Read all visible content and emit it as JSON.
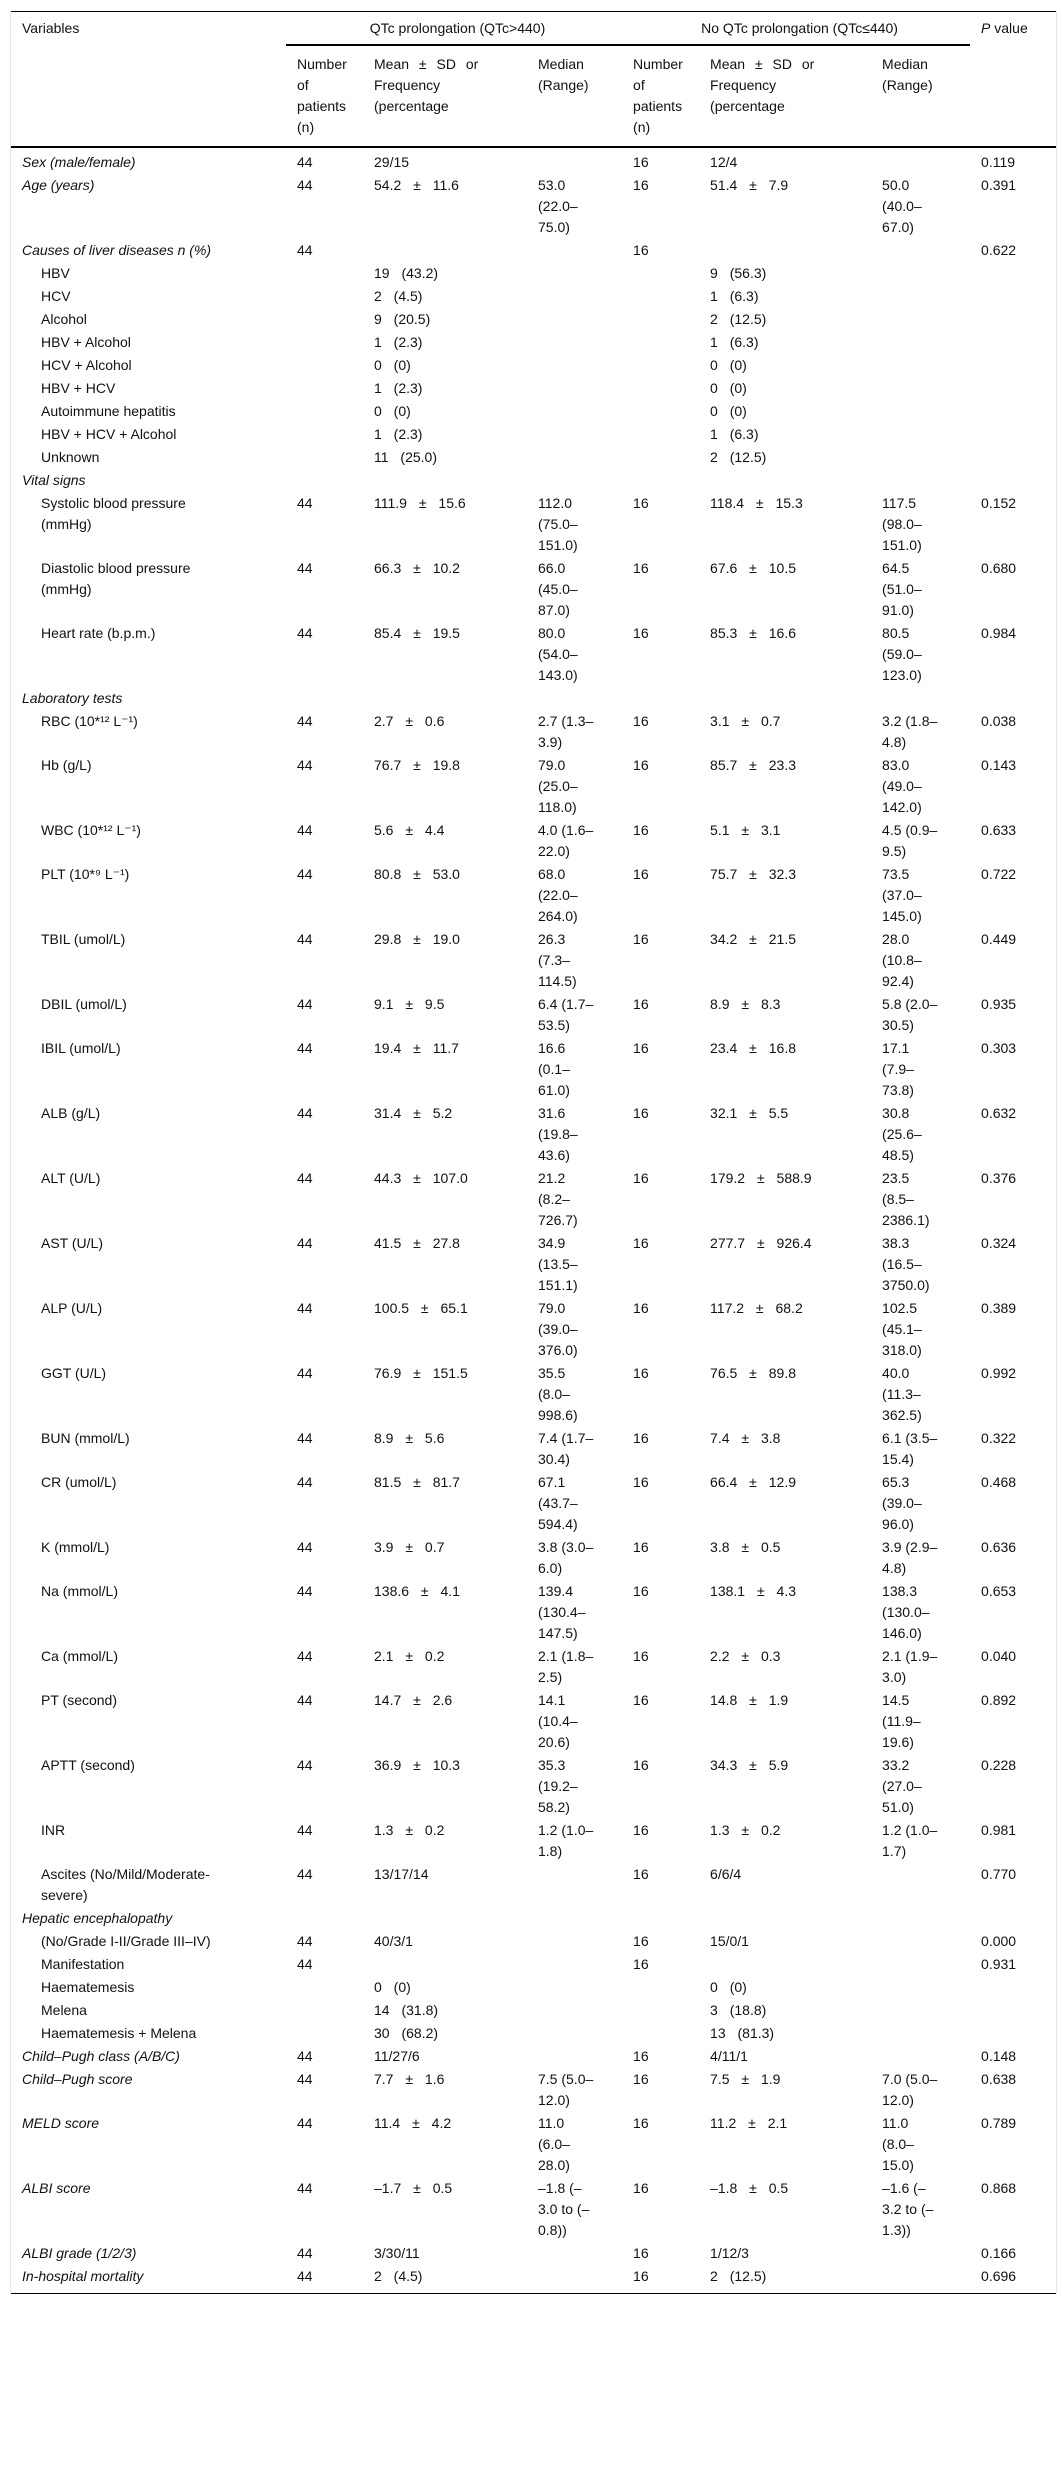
{
  "header": {
    "variables": "Variables",
    "group1": "QTc prolongation (QTc>440)",
    "group2": "No QTc prolongation (QTc≤440)",
    "p_italic": "P",
    "p_rest": " value",
    "col_n": "Number of patients (n)",
    "col_mean": "Mean ± SD or Frequency (percentage",
    "col_median": "Median (Range)"
  },
  "rows": [
    {
      "s": "it",
      "v": "Sex (male/female)",
      "c": [
        "44",
        "29/15",
        "",
        "16",
        "12/4",
        "",
        "0.119"
      ]
    },
    {
      "s": "it",
      "v": "Age (years)",
      "c": [
        "44",
        "54.2 ± 11.6",
        "53.0 (22.0–75.0)",
        "16",
        "51.4 ± 7.9",
        "50.0 (40.0–67.0)",
        "0.391"
      ]
    },
    {
      "s": "it",
      "v": "Causes of liver diseases n (%)",
      "c": [
        "44",
        "",
        "",
        "16",
        "",
        "",
        "0.622"
      ]
    },
    {
      "s": "ind",
      "v": "HBV",
      "c": [
        "",
        "19 (43.2)",
        "",
        "",
        "9 (56.3)",
        "",
        ""
      ]
    },
    {
      "s": "ind",
      "v": "HCV",
      "c": [
        "",
        "2 (4.5)",
        "",
        "",
        "1 (6.3)",
        "",
        ""
      ]
    },
    {
      "s": "ind",
      "v": "Alcohol",
      "c": [
        "",
        "9 (20.5)",
        "",
        "",
        "2 (12.5)",
        "",
        ""
      ]
    },
    {
      "s": "ind",
      "v": "HBV + Alcohol",
      "c": [
        "",
        "1 (2.3)",
        "",
        "",
        "1 (6.3)",
        "",
        ""
      ]
    },
    {
      "s": "ind",
      "v": "HCV + Alcohol",
      "c": [
        "",
        "0 (0)",
        "",
        "",
        "0 (0)",
        "",
        ""
      ]
    },
    {
      "s": "ind",
      "v": "HBV + HCV",
      "c": [
        "",
        "1 (2.3)",
        "",
        "",
        "0 (0)",
        "",
        ""
      ]
    },
    {
      "s": "ind",
      "v": "Autoimmune hepatitis",
      "c": [
        "",
        "0 (0)",
        "",
        "",
        "0 (0)",
        "",
        ""
      ]
    },
    {
      "s": "ind",
      "v": "HBV + HCV + Alcohol",
      "c": [
        "",
        "1 (2.3)",
        "",
        "",
        "1 (6.3)",
        "",
        ""
      ]
    },
    {
      "s": "ind",
      "v": "Unknown",
      "c": [
        "",
        "11 (25.0)",
        "",
        "",
        "2 (12.5)",
        "",
        ""
      ]
    },
    {
      "s": "it",
      "v": "Vital signs",
      "c": [
        "",
        "",
        "",
        "",
        "",
        "",
        ""
      ]
    },
    {
      "s": "ind",
      "v": "Systolic blood pressure (mmHg)",
      "c": [
        "44",
        "111.9 ± 15.6",
        "112.0 (75.0–151.0)",
        "16",
        "118.4 ± 15.3",
        "117.5 (98.0–151.0)",
        "0.152"
      ]
    },
    {
      "s": "ind",
      "v": "Diastolic blood pressure (mmHg)",
      "c": [
        "44",
        "66.3 ± 10.2",
        "66.0 (45.0–87.0)",
        "16",
        "67.6 ± 10.5",
        "64.5 (51.0–91.0)",
        "0.680"
      ]
    },
    {
      "s": "ind",
      "v": "Heart rate (b.p.m.)",
      "c": [
        "44",
        "85.4 ± 19.5",
        "80.0 (54.0–143.0)",
        "16",
        "85.3 ± 16.6",
        "80.5 (59.0–123.0)",
        "0.984"
      ]
    },
    {
      "s": "it",
      "v": "Laboratory tests",
      "c": [
        "",
        "",
        "",
        "",
        "",
        "",
        ""
      ]
    },
    {
      "s": "ind",
      "v": "RBC (10*¹²  L⁻¹)",
      "c": [
        "44",
        "2.7 ± 0.6",
        "2.7 (1.3–3.9)",
        "16",
        "3.1 ± 0.7",
        "3.2 (1.8–4.8)",
        "0.038"
      ]
    },
    {
      "s": "ind",
      "v": "Hb (g/L)",
      "c": [
        "44",
        "76.7 ± 19.8",
        "79.0 (25.0–118.0)",
        "16",
        "85.7 ± 23.3",
        "83.0 (49.0–142.0)",
        "0.143"
      ]
    },
    {
      "s": "ind",
      "v": "WBC (10*¹²  L⁻¹)",
      "c": [
        "44",
        "5.6 ± 4.4",
        "4.0 (1.6–22.0)",
        "16",
        "5.1 ± 3.1",
        "4.5 (0.9–9.5)",
        "0.633"
      ]
    },
    {
      "s": "ind",
      "v": "PLT (10*⁹  L⁻¹)",
      "c": [
        "44",
        "80.8 ± 53.0",
        "68.0 (22.0–264.0)",
        "16",
        "75.7 ± 32.3",
        "73.5 (37.0–145.0)",
        "0.722"
      ]
    },
    {
      "s": "ind",
      "v": "TBIL (umol/L)",
      "c": [
        "44",
        "29.8 ± 19.0",
        "26.3 (7.3–114.5)",
        "16",
        "34.2 ± 21.5",
        "28.0 (10.8–92.4)",
        "0.449"
      ]
    },
    {
      "s": "ind",
      "v": "DBIL (umol/L)",
      "c": [
        "44",
        "9.1 ± 9.5",
        "6.4 (1.7–53.5)",
        "16",
        "8.9 ± 8.3",
        "5.8 (2.0–30.5)",
        "0.935"
      ]
    },
    {
      "s": "ind",
      "v": "IBIL (umol/L)",
      "c": [
        "44",
        "19.4 ± 11.7",
        "16.6 (0.1–61.0)",
        "16",
        "23.4 ± 16.8",
        "17.1 (7.9–73.8)",
        "0.303"
      ]
    },
    {
      "s": "ind",
      "v": "ALB (g/L)",
      "c": [
        "44",
        "31.4 ± 5.2",
        "31.6 (19.8–43.6)",
        "16",
        "32.1 ± 5.5",
        "30.8 (25.6–48.5)",
        "0.632"
      ]
    },
    {
      "s": "ind",
      "v": "ALT (U/L)",
      "c": [
        "44",
        "44.3 ± 107.0",
        "21.2 (8.2–726.7)",
        "16",
        "179.2 ± 588.9",
        "23.5 (8.5–2386.1)",
        "0.376"
      ]
    },
    {
      "s": "ind",
      "v": "AST (U/L)",
      "c": [
        "44",
        "41.5 ± 27.8",
        "34.9 (13.5–151.1)",
        "16",
        "277.7 ± 926.4",
        "38.3 (16.5–3750.0)",
        "0.324"
      ]
    },
    {
      "s": "ind",
      "v": "ALP (U/L)",
      "c": [
        "44",
        "100.5 ± 65.1",
        "79.0 (39.0–376.0)",
        "16",
        "117.2 ± 68.2",
        "102.5 (45.1–318.0)",
        "0.389"
      ]
    },
    {
      "s": "ind",
      "v": "GGT (U/L)",
      "c": [
        "44",
        "76.9 ± 151.5",
        "35.5 (8.0–998.6)",
        "16",
        "76.5 ± 89.8",
        "40.0 (11.3–362.5)",
        "0.992"
      ]
    },
    {
      "s": "ind",
      "v": "BUN (mmol/L)",
      "c": [
        "44",
        "8.9 ± 5.6",
        "7.4 (1.7–30.4)",
        "16",
        "7.4 ± 3.8",
        "6.1 (3.5–15.4)",
        "0.322"
      ]
    },
    {
      "s": "ind",
      "v": "CR (umol/L)",
      "c": [
        "44",
        "81.5 ± 81.7",
        "67.1 (43.7–594.4)",
        "16",
        "66.4 ± 12.9",
        "65.3 (39.0–96.0)",
        "0.468"
      ]
    },
    {
      "s": "ind",
      "v": "K (mmol/L)",
      "c": [
        "44",
        "3.9 ± 0.7",
        "3.8 (3.0–6.0)",
        "16",
        "3.8 ± 0.5",
        "3.9 (2.9–4.8)",
        "0.636"
      ]
    },
    {
      "s": "ind",
      "v": "Na (mmol/L)",
      "c": [
        "44",
        "138.6 ± 4.1",
        "139.4 (130.4–147.5)",
        "16",
        "138.1 ± 4.3",
        "138.3 (130.0–146.0)",
        "0.653"
      ]
    },
    {
      "s": "ind",
      "v": "Ca (mmol/L)",
      "c": [
        "44",
        "2.1 ± 0.2",
        "2.1 (1.8–2.5)",
        "16",
        "2.2 ± 0.3",
        "2.1 (1.9–3.0)",
        "0.040"
      ]
    },
    {
      "s": "ind",
      "v": "PT (second)",
      "c": [
        "44",
        "14.7 ± 2.6",
        "14.1 (10.4–20.6)",
        "16",
        "14.8 ± 1.9",
        "14.5 (11.9–19.6)",
        "0.892"
      ]
    },
    {
      "s": "ind",
      "v": "APTT (second)",
      "c": [
        "44",
        "36.9 ± 10.3",
        "35.3 (19.2–58.2)",
        "16",
        "34.3 ± 5.9",
        "33.2 (27.0–51.0)",
        "0.228"
      ]
    },
    {
      "s": "ind",
      "v": "INR",
      "c": [
        "44",
        "1.3 ± 0.2",
        "1.2 (1.0–1.8)",
        "16",
        "1.3 ± 0.2",
        "1.2 (1.0–1.7)",
        "0.981"
      ]
    },
    {
      "s": "ind",
      "v": "Ascites (No/Mild/Moderate-severe)",
      "c": [
        "44",
        "13/17/14",
        "",
        "16",
        "6/6/4",
        "",
        "0.770"
      ]
    },
    {
      "s": "it",
      "v": "Hepatic encephalopathy",
      "c": [
        "",
        "",
        "",
        "",
        "",
        "",
        ""
      ]
    },
    {
      "s": "ind",
      "v": "(No/Grade I-II/Grade III–IV)",
      "c": [
        "44",
        "40/3/1",
        "",
        "16",
        "15/0/1",
        "",
        "0.000"
      ]
    },
    {
      "s": "ind",
      "v": "Manifestation",
      "c": [
        "44",
        "",
        "",
        "16",
        "",
        "",
        "0.931"
      ]
    },
    {
      "s": "ind",
      "v": "Haematemesis",
      "c": [
        "",
        "0 (0)",
        "",
        "",
        "0 (0)",
        "",
        ""
      ]
    },
    {
      "s": "ind",
      "v": "Melena",
      "c": [
        "",
        "14 (31.8)",
        "",
        "",
        "3 (18.8)",
        "",
        ""
      ]
    },
    {
      "s": "ind",
      "v": "Haematemesis + Melena",
      "c": [
        "",
        "30 (68.2)",
        "",
        "",
        "13 (81.3)",
        "",
        ""
      ]
    },
    {
      "s": "it",
      "v": "Child–Pugh class (A/B/C)",
      "c": [
        "44",
        "11/27/6",
        "",
        "16",
        "4/11/1",
        "",
        "0.148"
      ]
    },
    {
      "s": "it",
      "v": "Child–Pugh score",
      "c": [
        "44",
        "7.7 ± 1.6",
        "7.5 (5.0–12.0)",
        "16",
        "7.5 ± 1.9",
        "7.0 (5.0–12.0)",
        "0.638"
      ]
    },
    {
      "s": "it",
      "v": "MELD score",
      "c": [
        "44",
        "11.4 ± 4.2",
        "11.0 (6.0–28.0)",
        "16",
        "11.2 ± 2.1",
        "11.0 (8.0–15.0)",
        "0.789"
      ]
    },
    {
      "s": "it",
      "v": "ALBI score",
      "c": [
        "44",
        "–1.7 ± 0.5",
        "–1.8 (–3.0 to (–0.8))",
        "16",
        "–1.8 ± 0.5",
        "–1.6 (–3.2 to (–1.3))",
        "0.868"
      ]
    },
    {
      "s": "it",
      "v": "ALBI grade (1/2/3)",
      "c": [
        "44",
        "3/30/11",
        "",
        "16",
        "1/12/3",
        "",
        "0.166"
      ]
    },
    {
      "s": "it",
      "v": "In-hospital mortality",
      "c": [
        "44",
        "2 (4.5)",
        "",
        "16",
        "2 (12.5)",
        "",
        "0.696"
      ]
    }
  ]
}
